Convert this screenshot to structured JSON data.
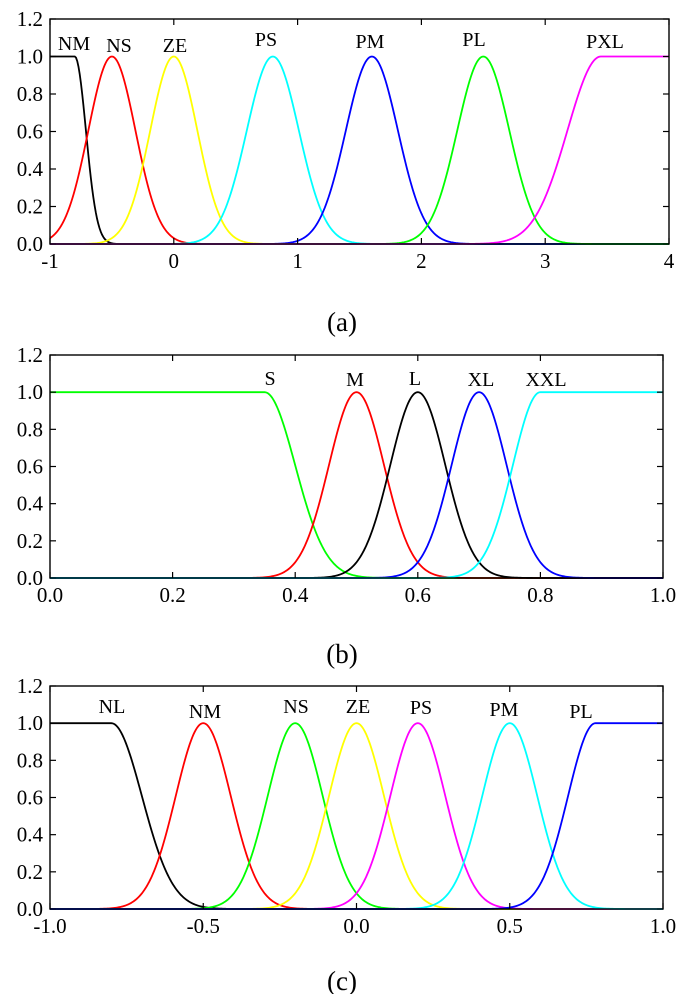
{
  "chart_data": [
    {
      "type": "line",
      "caption": "(a)",
      "xlim": [
        -1,
        4
      ],
      "ylim": [
        0,
        1.2
      ],
      "xticks": [
        "-1",
        "0",
        "1",
        "2",
        "3",
        "4"
      ],
      "yticks": [
        "0.0",
        "0.2",
        "0.4",
        "0.6",
        "0.8",
        "1.0",
        "1.2"
      ],
      "grid": false,
      "series": [
        {
          "name": "NM",
          "color": "#000000",
          "kind": "zleft",
          "center": -0.8,
          "sigma": 0.09
        },
        {
          "name": "NS",
          "color": "#ff0000",
          "kind": "gauss",
          "center": -0.5,
          "sigma": 0.19
        },
        {
          "name": "ZE",
          "color": "#ffff00",
          "kind": "gauss",
          "center": 0.0,
          "sigma": 0.19
        },
        {
          "name": "PS",
          "color": "#00ffff",
          "kind": "gauss",
          "center": 0.8,
          "sigma": 0.21
        },
        {
          "name": "PM",
          "color": "#0000ff",
          "kind": "gauss",
          "center": 1.6,
          "sigma": 0.21
        },
        {
          "name": "PL",
          "color": "#00ff00",
          "kind": "gauss",
          "center": 2.5,
          "sigma": 0.21
        },
        {
          "name": "PXL",
          "color": "#ff00ff",
          "kind": "sright",
          "center": 3.45,
          "sigma": 0.27
        }
      ]
    },
    {
      "type": "line",
      "caption": "(b)",
      "xlim": [
        0,
        1
      ],
      "ylim": [
        0,
        1.2
      ],
      "xticks": [
        "0.0",
        "0.2",
        "0.4",
        "0.6",
        "0.8",
        "1.0"
      ],
      "yticks": [
        "0.0",
        "0.2",
        "0.4",
        "0.6",
        "0.8",
        "1.0",
        "1.2"
      ],
      "grid": false,
      "series": [
        {
          "name": "S",
          "color": "#00ff00",
          "kind": "zleft",
          "center": 0.35,
          "sigma": 0.05
        },
        {
          "name": "M",
          "color": "#ff0000",
          "kind": "gauss",
          "center": 0.5,
          "sigma": 0.045
        },
        {
          "name": "L",
          "color": "#000000",
          "kind": "gauss",
          "center": 0.6,
          "sigma": 0.045
        },
        {
          "name": "XL",
          "color": "#0000ff",
          "kind": "gauss",
          "center": 0.7,
          "sigma": 0.045
        },
        {
          "name": "XXL",
          "color": "#00ffff",
          "kind": "sright",
          "center": 0.8,
          "sigma": 0.045
        }
      ]
    },
    {
      "type": "line",
      "caption": "(c)",
      "xlim": [
        -1,
        1
      ],
      "ylim": [
        0,
        1.2
      ],
      "xticks": [
        "-1.0",
        "-0.5",
        "0.0",
        "0.5",
        "1.0"
      ],
      "yticks": [
        "0.0",
        "0.2",
        "0.4",
        "0.6",
        "0.8",
        "1.0",
        "1.2"
      ],
      "grid": false,
      "series": [
        {
          "name": "NL",
          "color": "#000000",
          "kind": "zleft",
          "center": -0.8,
          "sigma": 0.1
        },
        {
          "name": "NM",
          "color": "#ff0000",
          "kind": "gauss",
          "center": -0.5,
          "sigma": 0.09
        },
        {
          "name": "NS",
          "color": "#00ff00",
          "kind": "gauss",
          "center": -0.2,
          "sigma": 0.09
        },
        {
          "name": "ZE",
          "color": "#ffff00",
          "kind": "gauss",
          "center": 0.0,
          "sigma": 0.09
        },
        {
          "name": "PS",
          "color": "#ff00ff",
          "kind": "gauss",
          "center": 0.2,
          "sigma": 0.09
        },
        {
          "name": "PM",
          "color": "#00ffff",
          "kind": "gauss",
          "center": 0.5,
          "sigma": 0.09
        },
        {
          "name": "PL",
          "color": "#0000ff",
          "kind": "sright",
          "center": 0.78,
          "sigma": 0.09
        }
      ]
    }
  ]
}
